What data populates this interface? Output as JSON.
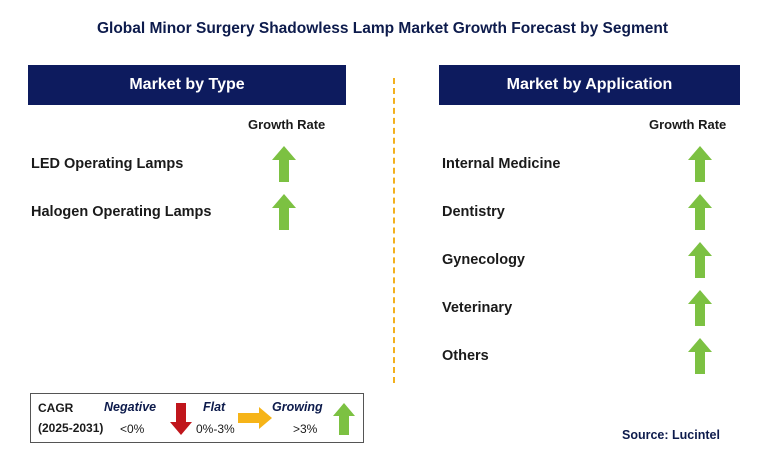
{
  "title": "Global Minor Surgery Shadowless Lamp Market Growth Forecast by Segment",
  "left_panel": {
    "header": "Market by Type",
    "growth_label": "Growth Rate",
    "segments": [
      {
        "label": "LED Operating Lamps",
        "trend": "growing"
      },
      {
        "label": "Halogen Operating Lamps",
        "trend": "growing"
      }
    ]
  },
  "right_panel": {
    "header": "Market by Application",
    "growth_label": "Growth Rate",
    "segments": [
      {
        "label": "Internal Medicine",
        "trend": "growing"
      },
      {
        "label": "Dentistry",
        "trend": "growing"
      },
      {
        "label": "Gynecology",
        "trend": "growing"
      },
      {
        "label": "Veterinary",
        "trend": "growing"
      },
      {
        "label": "Others",
        "trend": "growing"
      }
    ]
  },
  "legend": {
    "cagr": "CAGR",
    "period": "(2025-2031)",
    "negative_label": "Negative",
    "negative_range": "<0%",
    "flat_label": "Flat",
    "flat_range": "0%-3%",
    "growing_label": "Growing",
    "growing_range": ">3%"
  },
  "source": "Source: Lucintel",
  "colors": {
    "header_bg": "#0d1b5e",
    "growing": "#7cc142",
    "negative": "#c0161c",
    "flat": "#f6b418",
    "divider": "#f2b01e"
  }
}
